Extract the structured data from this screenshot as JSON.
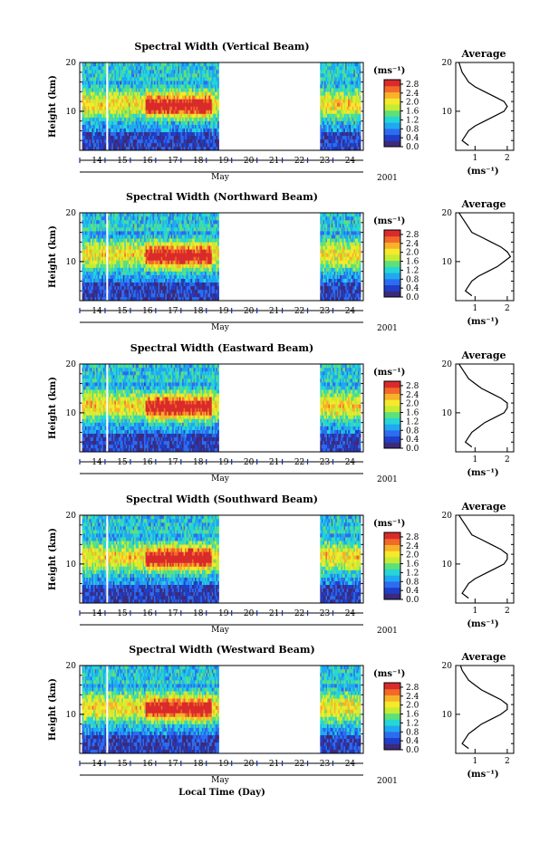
{
  "figure": {
    "xaxis_label": "Local Time (Day)",
    "colorbar_unit": "(ms⁻¹)",
    "avg_unit": "(ms⁻¹)",
    "month_label": "May",
    "year_label": "2001",
    "height_label": "Height (km)",
    "avg_title": "Average"
  },
  "colors": {
    "colormap": [
      "#3d2a7a",
      "#1f3fc8",
      "#2d6cf0",
      "#1fa9f0",
      "#26d6d6",
      "#5ee07a",
      "#c5ec32",
      "#f5e92c",
      "#f7b12a",
      "#f2692a",
      "#d92b2b"
    ]
  },
  "chart_data": [
    {
      "type": "heatmap",
      "title": "Spectral Width (Vertical Beam)",
      "x_day_ticks": [
        14,
        15,
        16,
        17,
        18,
        19,
        20,
        21,
        22,
        23,
        24
      ],
      "x_range_day": [
        13.5,
        24.7
      ],
      "data_gaps_day": [
        [
          19.0,
          23.0
        ]
      ],
      "ylabel": "Height (km)",
      "y_ticks": [
        10,
        20
      ],
      "ylim": [
        2,
        20
      ],
      "colorbar_ticks": [
        "2.8",
        "2.4",
        "2.0",
        "1.6",
        "1.2",
        "0.8",
        "0.4",
        "0.0"
      ],
      "colorbar_range": [
        0,
        3
      ],
      "average": {
        "title": "Average",
        "x_ticks": [
          1,
          2
        ],
        "xlim": [
          0.4,
          2.2
        ],
        "ylim": [
          2,
          20
        ],
        "y_ticks": [
          10,
          20
        ],
        "height": [
          3,
          4,
          5,
          6,
          7,
          8,
          9,
          10,
          11,
          12,
          13,
          14,
          15,
          16,
          17,
          18,
          19,
          20
        ],
        "width": [
          0.8,
          0.6,
          0.7,
          0.8,
          1.0,
          1.3,
          1.6,
          1.9,
          2.0,
          1.9,
          1.6,
          1.3,
          1.0,
          0.8,
          0.7,
          0.6,
          0.55,
          0.5
        ]
      }
    },
    {
      "type": "heatmap",
      "title": "Spectral Width (Northward Beam)",
      "x_day_ticks": [
        14,
        15,
        16,
        17,
        18,
        19,
        20,
        21,
        22,
        23,
        24
      ],
      "x_range_day": [
        13.5,
        24.7
      ],
      "data_gaps_day": [
        [
          19.0,
          23.0
        ]
      ],
      "ylabel": "Height (km)",
      "y_ticks": [
        10,
        20
      ],
      "ylim": [
        2,
        20
      ],
      "colorbar_ticks": [
        "2.8",
        "2.4",
        "2.0",
        "1.6",
        "1.2",
        "0.8",
        "0.4",
        "0.0"
      ],
      "colorbar_range": [
        0,
        3
      ],
      "average": {
        "title": "Average",
        "x_ticks": [
          1,
          2
        ],
        "xlim": [
          0.4,
          2.2
        ],
        "ylim": [
          2,
          20
        ],
        "y_ticks": [
          10,
          20
        ],
        "height": [
          3,
          4,
          5,
          6,
          7,
          8,
          9,
          10,
          11,
          12,
          13,
          14,
          15,
          16,
          17,
          18,
          19,
          20
        ],
        "width": [
          0.9,
          0.7,
          0.8,
          0.9,
          1.1,
          1.4,
          1.7,
          1.9,
          2.1,
          2.0,
          1.8,
          1.5,
          1.2,
          0.9,
          0.8,
          0.7,
          0.6,
          0.5
        ]
      }
    },
    {
      "type": "heatmap",
      "title": "Spectral Width (Eastward Beam)",
      "x_day_ticks": [
        14,
        15,
        16,
        17,
        18,
        19,
        20,
        21,
        22,
        23,
        24
      ],
      "x_range_day": [
        13.5,
        24.7
      ],
      "data_gaps_day": [
        [
          19.0,
          23.0
        ]
      ],
      "ylabel": "Height (km)",
      "y_ticks": [
        10,
        20
      ],
      "ylim": [
        2,
        20
      ],
      "colorbar_ticks": [
        "2.8",
        "2.4",
        "2.0",
        "1.6",
        "1.2",
        "0.8",
        "0.4",
        "0.0"
      ],
      "colorbar_range": [
        0,
        3
      ],
      "average": {
        "title": "Average",
        "x_ticks": [
          1,
          2
        ],
        "xlim": [
          0.4,
          2.2
        ],
        "ylim": [
          2,
          20
        ],
        "y_ticks": [
          10,
          20
        ],
        "height": [
          3,
          4,
          5,
          6,
          7,
          8,
          9,
          10,
          11,
          12,
          13,
          14,
          15,
          16,
          17,
          18,
          19,
          20
        ],
        "width": [
          0.9,
          0.7,
          0.8,
          0.9,
          1.1,
          1.3,
          1.6,
          1.9,
          2.0,
          2.0,
          1.8,
          1.5,
          1.2,
          1.0,
          0.8,
          0.7,
          0.6,
          0.5
        ]
      }
    },
    {
      "type": "heatmap",
      "title": "Spectral Width (Southward Beam)",
      "x_day_ticks": [
        14,
        15,
        16,
        17,
        18,
        19,
        20,
        21,
        22,
        23,
        24
      ],
      "x_range_day": [
        13.5,
        24.7
      ],
      "data_gaps_day": [
        [
          19.0,
          23.0
        ]
      ],
      "ylabel": "Height (km)",
      "y_ticks": [
        10,
        20
      ],
      "ylim": [
        2,
        20
      ],
      "colorbar_ticks": [
        "2.8",
        "2.4",
        "2.0",
        "1.6",
        "1.2",
        "0.8",
        "0.4",
        "0.0"
      ],
      "colorbar_range": [
        0,
        3
      ],
      "average": {
        "title": "Average",
        "x_ticks": [
          1,
          2
        ],
        "xlim": [
          0.4,
          2.2
        ],
        "ylim": [
          2,
          20
        ],
        "y_ticks": [
          10,
          20
        ],
        "height": [
          3,
          4,
          5,
          6,
          7,
          8,
          9,
          10,
          11,
          12,
          13,
          14,
          15,
          16,
          17,
          18,
          19,
          20
        ],
        "width": [
          0.8,
          0.6,
          0.7,
          0.8,
          1.0,
          1.3,
          1.6,
          1.9,
          2.0,
          2.0,
          1.8,
          1.5,
          1.2,
          0.9,
          0.8,
          0.7,
          0.6,
          0.5
        ]
      }
    },
    {
      "type": "heatmap",
      "title": "Spectral Width (Westward Beam)",
      "x_day_ticks": [
        14,
        15,
        16,
        17,
        18,
        19,
        20,
        21,
        22,
        23,
        24
      ],
      "x_range_day": [
        13.5,
        24.7
      ],
      "data_gaps_day": [
        [
          19.0,
          23.0
        ]
      ],
      "ylabel": "Height (km)",
      "y_ticks": [
        10,
        20
      ],
      "ylim": [
        2,
        20
      ],
      "colorbar_ticks": [
        "2.8",
        "2.4",
        "2.0",
        "1.6",
        "1.2",
        "0.8",
        "0.4",
        "0.0"
      ],
      "colorbar_range": [
        0,
        3
      ],
      "average": {
        "title": "Average",
        "x_ticks": [
          1,
          2
        ],
        "xlim": [
          0.4,
          2.2
        ],
        "ylim": [
          2,
          20
        ],
        "y_ticks": [
          10,
          20
        ],
        "height": [
          3,
          4,
          5,
          6,
          7,
          8,
          9,
          10,
          11,
          12,
          13,
          14,
          15,
          16,
          17,
          18,
          19,
          20
        ],
        "width": [
          0.8,
          0.6,
          0.7,
          0.8,
          1.0,
          1.2,
          1.5,
          1.8,
          2.0,
          2.0,
          1.8,
          1.5,
          1.2,
          1.0,
          0.8,
          0.7,
          0.6,
          0.55
        ]
      }
    }
  ]
}
